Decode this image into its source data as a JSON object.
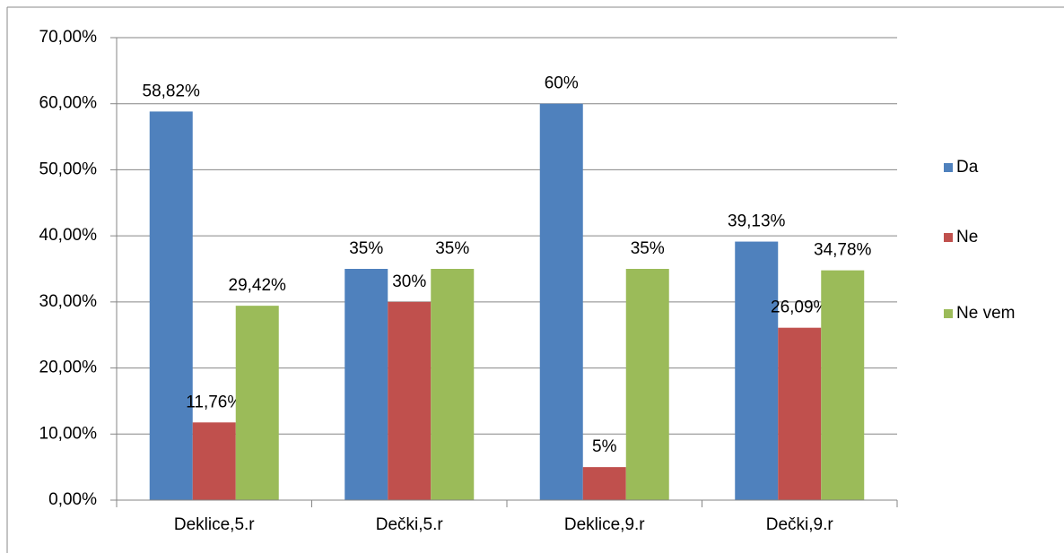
{
  "chart_data": {
    "type": "bar",
    "categories": [
      "Deklice,5.r",
      "Dečki,5.r",
      "Deklice,9.r",
      "Dečki,9.r"
    ],
    "series": [
      {
        "name": "Da",
        "color": "#4f81bd",
        "values": [
          58.82,
          35,
          60,
          39.13
        ],
        "value_labels": [
          "58,82%",
          "35%",
          "60%",
          "39,13%"
        ]
      },
      {
        "name": "Ne",
        "color": "#c0504d",
        "values": [
          11.76,
          30,
          5,
          26.09
        ],
        "value_labels": [
          "11,76%",
          "30%",
          "5%",
          "26,09%"
        ]
      },
      {
        "name": "Ne vem",
        "color": "#9bbb59",
        "values": [
          29.42,
          35,
          35,
          34.78
        ],
        "value_labels": [
          "29,42%",
          "35%",
          "35%",
          "34,78%"
        ]
      }
    ],
    "ylim": [
      0,
      70
    ],
    "yticks": [
      {
        "value": 0,
        "label": "0,00%"
      },
      {
        "value": 10,
        "label": "10,00%"
      },
      {
        "value": 20,
        "label": "20,00%"
      },
      {
        "value": 30,
        "label": "30,00%"
      },
      {
        "value": 40,
        "label": "40,00%"
      },
      {
        "value": 50,
        "label": "50,00%"
      },
      {
        "value": 60,
        "label": "60,00%"
      },
      {
        "value": 70,
        "label": "70,00%"
      }
    ],
    "grid": true,
    "legend": "right"
  }
}
